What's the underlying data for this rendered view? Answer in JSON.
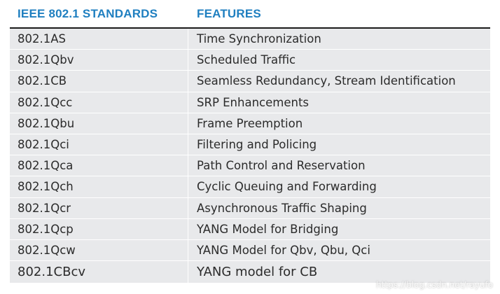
{
  "table": {
    "headers": {
      "standards": "IEEE 802.1 STANDARDS",
      "features": "FEATURES"
    },
    "rows": [
      {
        "standard": "802.1AS",
        "feature": "Time Synchronization"
      },
      {
        "standard": "802.1Qbv",
        "feature": "Scheduled Traffic"
      },
      {
        "standard": "802.1CB",
        "feature": "Seamless Redundancy, Stream Identification"
      },
      {
        "standard": "802.1Qcc",
        "feature": "SRP Enhancements"
      },
      {
        "standard": "802.1Qbu",
        "feature": "Frame Preemption"
      },
      {
        "standard": "802.1Qci",
        "feature": "Filtering and Policing"
      },
      {
        "standard": "802.1Qca",
        "feature": "Path Control and Reservation"
      },
      {
        "standard": "802.1Qch",
        "feature": "Cyclic Queuing and Forwarding"
      },
      {
        "standard": "802.1Qcr",
        "feature": "Asynchronous Traffic Shaping"
      },
      {
        "standard": "802.1Qcp",
        "feature": "YANG Model for Bridging"
      },
      {
        "standard": "802.1Qcw",
        "feature": "YANG Model for Qbv, Qbu, Qci"
      },
      {
        "standard": "802.1CBcv",
        "feature": "YANG model for CB"
      }
    ]
  },
  "watermark": "https://blog.csdn.net/rayufo",
  "colors": {
    "header_text": "#1f7fc0",
    "row_background": "#e8e9eb"
  }
}
